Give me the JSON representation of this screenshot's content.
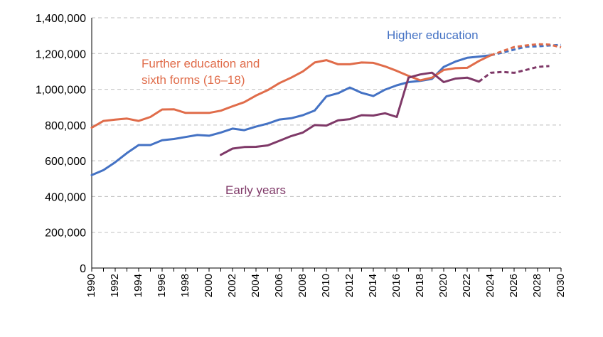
{
  "chart_data": {
    "type": "line",
    "title": "",
    "xlabel": "",
    "ylabel": "",
    "xlim": [
      1990,
      2030
    ],
    "ylim": [
      0,
      1400000
    ],
    "y_ticks": [
      0,
      200000,
      400000,
      600000,
      800000,
      1000000,
      1200000,
      1400000
    ],
    "y_tick_labels": [
      "0",
      "200,000",
      "400,000",
      "600,000",
      "800,000",
      "1,000,000",
      "1,200,000",
      "1,400,000"
    ],
    "x_ticks": [
      1990,
      1992,
      1994,
      1996,
      1998,
      2000,
      2002,
      2004,
      2006,
      2008,
      2010,
      2012,
      2014,
      2016,
      2018,
      2020,
      2022,
      2024,
      2026,
      2028,
      2030
    ],
    "x_tick_labels": [
      "1990",
      "1992",
      "1994",
      "1996",
      "1998",
      "2000",
      "2002",
      "2004",
      "2006",
      "2008",
      "2010",
      "2012",
      "2014",
      "2016",
      "2018",
      "2020",
      "2022",
      "2024",
      "2026",
      "2028",
      "2030"
    ],
    "grid": "horizontal dashed",
    "legend": "inline labels",
    "series": [
      {
        "name": "Higher education",
        "color": "#4472c4",
        "actual": {
          "x": [
            1990,
            1991,
            1992,
            1993,
            1994,
            1995,
            1996,
            1997,
            1998,
            1999,
            2000,
            2001,
            2002,
            2003,
            2004,
            2005,
            2006,
            2007,
            2008,
            2009,
            2010,
            2011,
            2012,
            2013,
            2014,
            2015,
            2016,
            2017,
            2018,
            2019,
            2020,
            2021,
            2022,
            2023,
            2024
          ],
          "y": [
            520000,
            548000,
            592000,
            643000,
            688000,
            688000,
            715000,
            722000,
            733000,
            744000,
            740000,
            758000,
            780000,
            771000,
            791000,
            808000,
            831000,
            838000,
            855000,
            881000,
            960000,
            978000,
            1010000,
            980000,
            962000,
            998000,
            1022000,
            1040000,
            1047000,
            1058000,
            1125000,
            1155000,
            1176000,
            1183000,
            1190000
          ]
        },
        "projected": {
          "x": [
            2024,
            2025,
            2026,
            2027,
            2028,
            2029,
            2030
          ],
          "y": [
            1190000,
            1205000,
            1222000,
            1238000,
            1240000,
            1245000,
            1248000
          ]
        }
      },
      {
        "name": "Further education and sixth forms (16–18)",
        "color": "#e06c4a",
        "actual": {
          "x": [
            1990,
            1991,
            1992,
            1993,
            1994,
            1995,
            1996,
            1997,
            1998,
            1999,
            2000,
            2001,
            2002,
            2003,
            2004,
            2005,
            2006,
            2007,
            2008,
            2009,
            2010,
            2011,
            2012,
            2013,
            2014,
            2015,
            2016,
            2017,
            2018,
            2019,
            2020,
            2021,
            2022,
            2023,
            2024
          ],
          "y": [
            785000,
            823000,
            830000,
            836000,
            823000,
            845000,
            887000,
            888000,
            868000,
            868000,
            868000,
            880000,
            905000,
            928000,
            965000,
            995000,
            1035000,
            1065000,
            1100000,
            1150000,
            1163000,
            1140000,
            1140000,
            1150000,
            1148000,
            1128000,
            1103000,
            1075000,
            1050000,
            1065000,
            1108000,
            1118000,
            1120000,
            1158000,
            1190000
          ]
        },
        "projected": {
          "x": [
            2024,
            2025,
            2026,
            2027,
            2028,
            2029,
            2030
          ],
          "y": [
            1190000,
            1213000,
            1236000,
            1245000,
            1252000,
            1250000,
            1235000
          ]
        }
      },
      {
        "name": "Early years",
        "color": "#7f3968",
        "actual": {
          "x": [
            2001,
            2002,
            2003,
            2004,
            2005,
            2006,
            2007,
            2008,
            2009,
            2010,
            2011,
            2012,
            2013,
            2014,
            2015,
            2016,
            2017,
            2018,
            2019,
            2020,
            2021,
            2022,
            2023
          ],
          "y": [
            633000,
            668000,
            677000,
            678000,
            686000,
            712000,
            738000,
            758000,
            800000,
            797000,
            826000,
            833000,
            855000,
            853000,
            866000,
            845000,
            1065000,
            1083000,
            1093000,
            1040000,
            1060000,
            1065000,
            1043000
          ]
        },
        "projected": {
          "x": [
            2023,
            2024,
            2025,
            2026,
            2027,
            2028,
            2029
          ],
          "y": [
            1043000,
            1092000,
            1097000,
            1092000,
            1108000,
            1125000,
            1130000
          ]
        }
      }
    ]
  },
  "labels": {
    "higher_education": "Higher education",
    "further_line1": "Further education and",
    "further_line2": "sixth forms (16–18)",
    "early_years": "Early years"
  }
}
